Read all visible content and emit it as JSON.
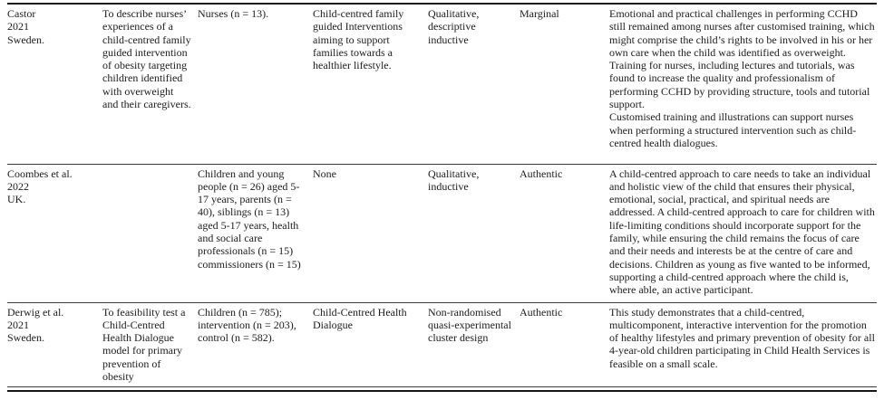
{
  "table": {
    "description": "Overview of included studies (continued table from an academic paper)",
    "rows": [
      {
        "study": "Castor\n2021\nSweden.",
        "aim": "To describe nurses’ experiences of a child-centred family guided intervention of obesity targeting children identified with overweight and their caregivers.",
        "participants": "Nurses (n = 13).",
        "intervention": "Child-centred family guided Interventions aiming to support families towards a healthier lifestyle.",
        "design": "Qualitative, descriptive inductive",
        "rating": "Marginal",
        "findings": "Emotional and practical challenges in performing CCHD still remained among nurses after customised training, which might comprise the child’s rights to be involved in his or her own care when the child was identified as overweight.\nTraining for nurses, including lectures and tutorials, was found to increase the quality and professionalism of performing CCHD by providing structure, tools and tutorial support.\nCustomised training and illustrations can support nurses when performing a structured intervention such as child-centred health dialogues."
      },
      {
        "study": "Coombes et al.\n2022\nUK.",
        "aim": "",
        "participants": "Children and young people (n = 26) aged 5-17 years, parents (n = 40), siblings (n = 13) aged 5-17 years, health and social care professionals (n = 15) commissioners (n = 15)",
        "intervention": "None",
        "design": "Qualitative, inductive",
        "rating": "Authentic",
        "findings": "A child-centred approach to care needs to take an individual and holistic view of the child that ensures their physical, emotional, social, practical, and spiritual needs are addressed. A child-centred approach to care for children with life-limiting conditions should incorporate support for the family, while ensuring the child remains the focus of care and their needs and interests be at the centre of care and decisions. Children as young as five wanted to be informed, supporting a child-centred approach where the child is, where able, an active participant."
      },
      {
        "study": "Derwig et al.\n2021\nSweden.",
        "aim": "To feasibility test a Child-Centred Health Dialogue model for primary prevention of obesity",
        "participants": "Children (n = 785); intervention (n = 203), control (n = 582).",
        "intervention": "Child-Centred Health Dialogue",
        "design": "Non-randomised quasi-experimental cluster design",
        "rating": "Authentic",
        "findings": "This study demonstrates that a child-centred, multicomponent, interactive intervention for the promotion of healthy lifestyles and primary prevention of obesity for all 4-year-old children participating in Child Health Services is feasible on a small scale."
      }
    ]
  }
}
